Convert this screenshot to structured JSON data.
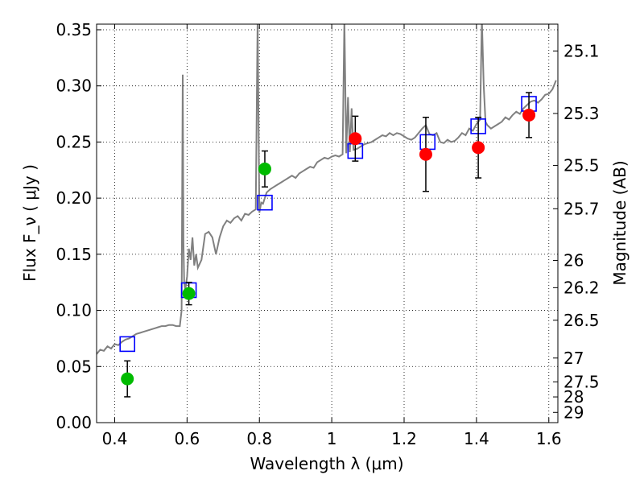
{
  "chart_data": {
    "type": "scatter",
    "xlabel": "Wavelength  λ (μm)",
    "ylabel": "Flux  F_ν  ( μJy )",
    "y2label": "Magnitude (AB)",
    "xlim": [
      0.35,
      1.625
    ],
    "ylim": [
      0.0,
      0.355
    ],
    "grid": true,
    "x_ticks": [
      "0.4",
      "0.6",
      "0.8",
      "1",
      "1.2",
      "1.4",
      "1.6"
    ],
    "y_ticks": [
      "0.00",
      "0.05",
      "0.10",
      "0.15",
      "0.20",
      "0.25",
      "0.30",
      "0.35"
    ],
    "right_ticks": [
      {
        "label": "25.1",
        "mag": 25.1
      },
      {
        "label": "25.3",
        "mag": 25.3
      },
      {
        "label": "25.5",
        "mag": 25.5
      },
      {
        "label": "25.7",
        "mag": 25.7
      },
      {
        "label": "26",
        "mag": 26.0
      },
      {
        "label": "26.2",
        "mag": 26.2
      },
      {
        "label": "26.5",
        "mag": 26.5
      },
      {
        "label": "27",
        "mag": 27.0
      },
      {
        "label": "27.5",
        "mag": 27.5
      },
      {
        "label": "28",
        "mag": 28.0
      },
      {
        "label": "29",
        "mag": 29.0
      }
    ],
    "series": [
      {
        "marker": "model-spectrum",
        "color": "#808080",
        "x": [
          0.35,
          0.36,
          0.37,
          0.38,
          0.39,
          0.4,
          0.41,
          0.42,
          0.43,
          0.44,
          0.45,
          0.46,
          0.47,
          0.48,
          0.49,
          0.5,
          0.51,
          0.52,
          0.53,
          0.54,
          0.55,
          0.56,
          0.57,
          0.58,
          0.585,
          0.588,
          0.59,
          0.592,
          0.595,
          0.6,
          0.605,
          0.61,
          0.615,
          0.62,
          0.625,
          0.63,
          0.64,
          0.65,
          0.66,
          0.67,
          0.68,
          0.69,
          0.7,
          0.71,
          0.72,
          0.73,
          0.74,
          0.75,
          0.76,
          0.77,
          0.78,
          0.79,
          0.795,
          0.8,
          0.805,
          0.81,
          0.82,
          0.83,
          0.84,
          0.85,
          0.86,
          0.87,
          0.88,
          0.89,
          0.9,
          0.91,
          0.92,
          0.93,
          0.94,
          0.95,
          0.96,
          0.97,
          0.98,
          0.99,
          1.0,
          1.01,
          1.02,
          1.03,
          1.035,
          1.04,
          1.045,
          1.05,
          1.055,
          1.06,
          1.07,
          1.08,
          1.09,
          1.1,
          1.11,
          1.12,
          1.13,
          1.14,
          1.15,
          1.16,
          1.17,
          1.18,
          1.19,
          1.2,
          1.21,
          1.22,
          1.23,
          1.24,
          1.25,
          1.26,
          1.27,
          1.28,
          1.29,
          1.3,
          1.31,
          1.32,
          1.33,
          1.34,
          1.35,
          1.36,
          1.37,
          1.38,
          1.39,
          1.4,
          1.41,
          1.415,
          1.42,
          1.425,
          1.43,
          1.44,
          1.45,
          1.46,
          1.47,
          1.48,
          1.49,
          1.5,
          1.51,
          1.52,
          1.53,
          1.54,
          1.55,
          1.56,
          1.57,
          1.58,
          1.59,
          1.6,
          1.61,
          1.62
        ],
        "values": [
          0.061,
          0.065,
          0.064,
          0.068,
          0.066,
          0.07,
          0.069,
          0.072,
          0.074,
          0.075,
          0.077,
          0.079,
          0.08,
          0.081,
          0.082,
          0.083,
          0.084,
          0.085,
          0.086,
          0.086,
          0.087,
          0.087,
          0.086,
          0.086,
          0.1,
          0.31,
          0.16,
          0.125,
          0.118,
          0.13,
          0.155,
          0.145,
          0.165,
          0.14,
          0.15,
          0.138,
          0.145,
          0.168,
          0.17,
          0.165,
          0.15,
          0.165,
          0.175,
          0.18,
          0.178,
          0.182,
          0.184,
          0.18,
          0.186,
          0.185,
          0.188,
          0.19,
          0.36,
          0.187,
          0.196,
          0.195,
          0.205,
          0.208,
          0.21,
          0.212,
          0.214,
          0.216,
          0.218,
          0.22,
          0.218,
          0.222,
          0.224,
          0.226,
          0.228,
          0.227,
          0.232,
          0.234,
          0.236,
          0.235,
          0.237,
          0.238,
          0.237,
          0.239,
          0.36,
          0.24,
          0.29,
          0.241,
          0.28,
          0.243,
          0.244,
          0.246,
          0.248,
          0.249,
          0.25,
          0.252,
          0.254,
          0.256,
          0.255,
          0.258,
          0.256,
          0.258,
          0.257,
          0.255,
          0.253,
          0.252,
          0.254,
          0.258,
          0.262,
          0.265,
          0.257,
          0.256,
          0.258,
          0.25,
          0.249,
          0.252,
          0.25,
          0.251,
          0.254,
          0.258,
          0.256,
          0.262,
          0.26,
          0.266,
          0.27,
          0.36,
          0.3,
          0.268,
          0.265,
          0.262,
          0.264,
          0.266,
          0.268,
          0.272,
          0.27,
          0.274,
          0.277,
          0.275,
          0.28,
          0.283,
          0.286,
          0.287,
          0.285,
          0.288,
          0.292,
          0.293,
          0.297,
          0.305
        ]
      },
      {
        "marker": "open-square",
        "color": "#0000ff",
        "x": [
          0.435,
          0.605,
          0.815,
          1.065,
          1.265,
          1.405,
          1.545
        ],
        "values": [
          0.07,
          0.118,
          0.196,
          0.242,
          0.25,
          0.264,
          0.284
        ]
      },
      {
        "marker": "filled-circle",
        "color": "#00bb00",
        "x": [
          0.435,
          0.605,
          0.815
        ],
        "values": [
          0.039,
          0.115,
          0.226
        ],
        "err": [
          0.016,
          0.01,
          0.016
        ]
      },
      {
        "marker": "filled-circle",
        "color": "#ff0000",
        "x": [
          1.065,
          1.26,
          1.405,
          1.545
        ],
        "values": [
          0.253,
          0.239,
          0.245,
          0.274
        ],
        "err": [
          0.02,
          0.033,
          0.027,
          0.02
        ]
      }
    ]
  }
}
